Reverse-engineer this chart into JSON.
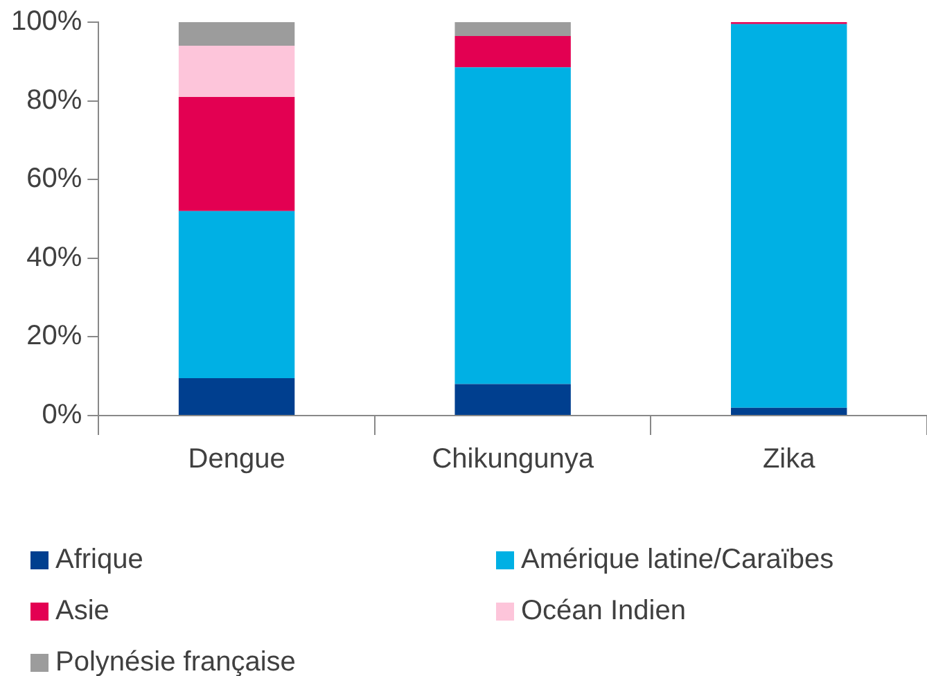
{
  "chart_data": {
    "type": "bar",
    "stacked": true,
    "categories": [
      "Dengue",
      "Chikungunya",
      "Zika"
    ],
    "series": [
      {
        "name": "Afrique",
        "color": "#003f8f",
        "values": [
          9.5,
          8,
          2
        ]
      },
      {
        "name": "Amérique latine/Caraïbes",
        "color": "#00b0e4",
        "values": [
          42.5,
          80.5,
          97.5
        ]
      },
      {
        "name": "Asie",
        "color": "#e30052",
        "values": [
          29,
          8,
          0.5
        ]
      },
      {
        "name": "Océan Indien",
        "color": "#fdc5da",
        "values": [
          13,
          0,
          0
        ]
      },
      {
        "name": "Polynésie française",
        "color": "#9c9c9c",
        "values": [
          6,
          3.5,
          0
        ]
      }
    ],
    "ylim": [
      0,
      100
    ],
    "yticks": [
      {
        "value": 0,
        "label": "0%"
      },
      {
        "value": 20,
        "label": "20%"
      },
      {
        "value": 40,
        "label": "40%"
      },
      {
        "value": 60,
        "label": "60%"
      },
      {
        "value": 80,
        "label": "80%"
      },
      {
        "value": 100,
        "label": "100%"
      }
    ],
    "grid": false,
    "legend": "bottom"
  }
}
